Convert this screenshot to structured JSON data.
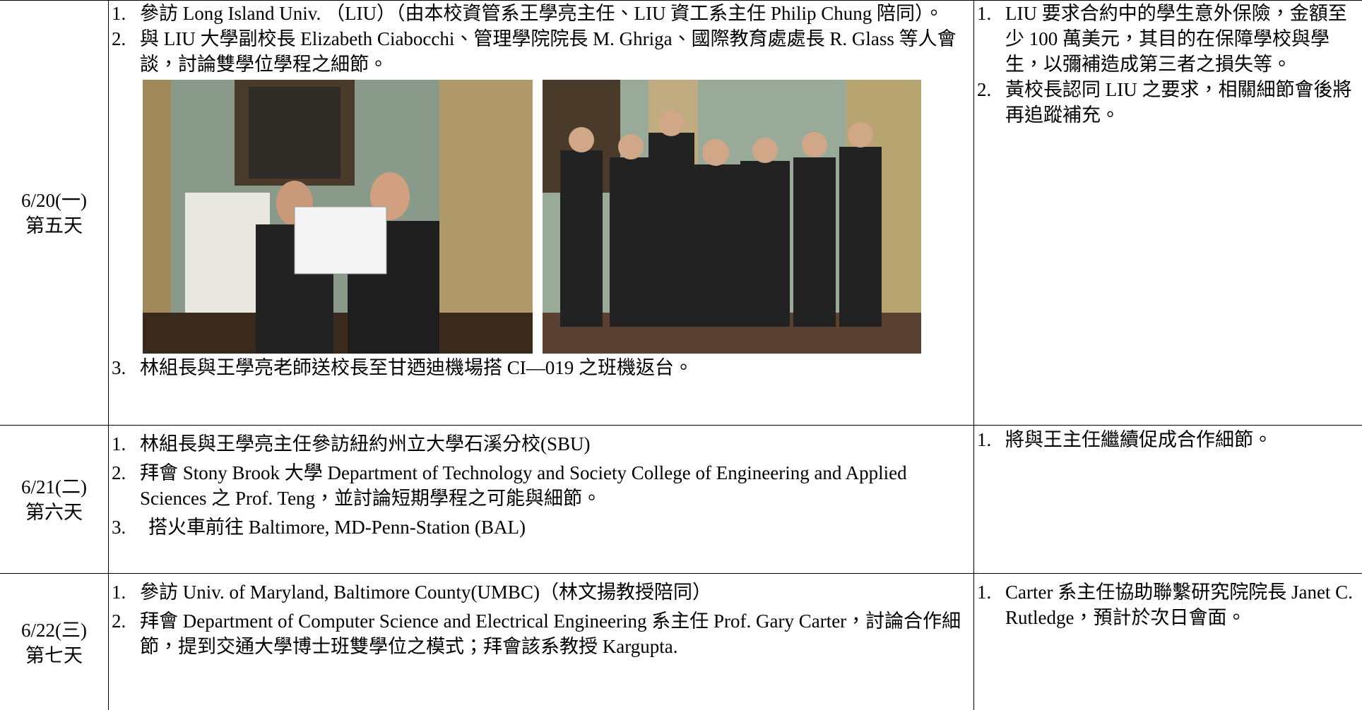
{
  "table": {
    "rows": [
      {
        "date": "6/20(一)",
        "day": "第五天",
        "items": [
          {
            "num": "1.",
            "text": "參訪 Long Island Univ. （LIU）（由本校資管系王學亮主任、LIU 資工系主任 Philip Chung 陪同）。"
          },
          {
            "num": "2.",
            "text": "與 LIU 大學副校長 Elizabeth Ciabocchi、管理學院院長 M. Ghriga、國際教育處處長 R. Glass 等人會談，討論雙學位學程之細節。"
          },
          {
            "num": "3.",
            "text": "林組長與王學亮老師送校長至甘迺迪機場搭 CI—019 之班機返台。"
          }
        ],
        "notes": [
          {
            "num": "1.",
            "text": "LIU 要求合約中的學生意外保險，金額至少 100 萬美元，其目的在保障學校與學生，以彌補造成第三者之損失等。"
          },
          {
            "num": "2.",
            "text": "黃校長認同 LIU 之要求，相關細節會後將再追蹤補充。"
          }
        ]
      },
      {
        "date": "6/21(二)",
        "day": "第六天",
        "items": [
          {
            "num": "1.",
            "text": "林組長與王學亮主任參訪紐約州立大學石溪分校(SBU)"
          },
          {
            "num": "2.",
            "text": "拜會 Stony Brook 大學 Department of Technology and Society College of Engineering and Applied Sciences 之 Prof. Teng，並討論短期學程之可能與細節。"
          },
          {
            "num": "3.",
            "text": "搭火車前往 Baltimore, MD-Penn-Station (BAL)"
          }
        ],
        "notes": [
          {
            "num": "1.",
            "text": "將與王主任繼續促成合作細節。"
          }
        ]
      },
      {
        "date": "6/22(三)",
        "day": "第七天",
        "items": [
          {
            "num": "1.",
            "text": "參訪 Univ. of Maryland, Baltimore County(UMBC)（林文揚教授陪同）"
          },
          {
            "num": "2.",
            "text": "拜會 Department of Computer Science and Electrical Engineering 系主任 Prof. Gary Carter，討論合作細節，提到交通大學博士班雙學位之模式；拜會該系教授 Kargupta."
          }
        ],
        "notes": [
          {
            "num": "1.",
            "text": "Carter 系主任協助聯繫研究院院長 Janet C. Rutledge，預計於次日會面。"
          }
        ]
      }
    ]
  }
}
